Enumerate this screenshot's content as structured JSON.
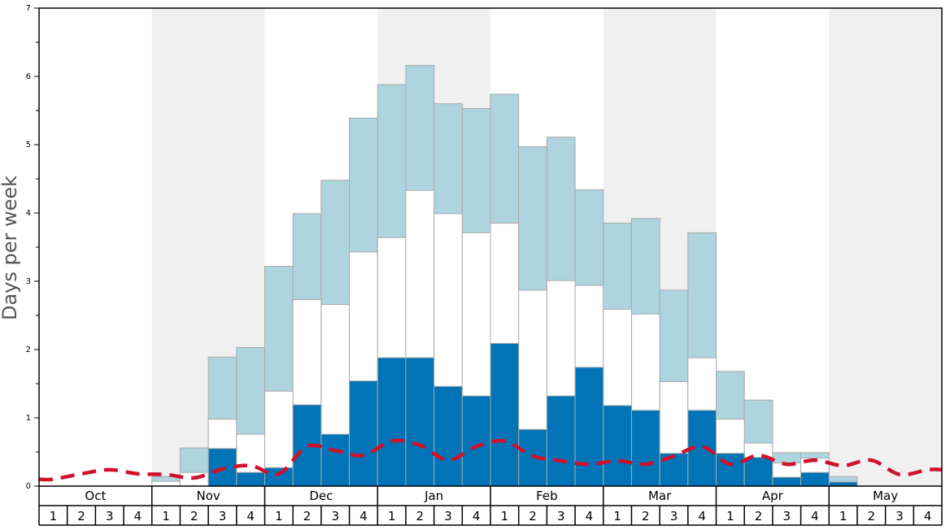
{
  "chart_data": {
    "type": "bar",
    "ylabel": "Days per week",
    "ylim": [
      0,
      7
    ],
    "y_ticks": [
      "0",
      "1",
      "2",
      "3",
      "4",
      "5",
      "6",
      "7"
    ],
    "grid": false,
    "months": [
      "Oct",
      "Nov",
      "Dec",
      "Jan",
      "Feb",
      "Mar",
      "Apr",
      "May"
    ],
    "week_labels": [
      "1",
      "2",
      "3",
      "4"
    ],
    "categories": [
      "Oct 1",
      "Oct 2",
      "Oct 3",
      "Oct 4",
      "Nov 1",
      "Nov 2",
      "Nov 3",
      "Nov 4",
      "Dec 1",
      "Dec 2",
      "Dec 3",
      "Dec 4",
      "Jan 1",
      "Jan 2",
      "Jan 3",
      "Jan 4",
      "Feb 1",
      "Feb 2",
      "Feb 3",
      "Feb 4",
      "Mar 1",
      "Mar 2",
      "Mar 3",
      "Mar 4",
      "Apr 1",
      "Apr 2",
      "Apr 3",
      "Apr 4",
      "May 1",
      "May 2",
      "May 3",
      "May 4"
    ],
    "series": [
      {
        "color": "#0074b7",
        "values": [
          0,
          0,
          0,
          0,
          0,
          0,
          0.55,
          0.2,
          0.27,
          1.19,
          0.76,
          1.54,
          1.88,
          1.88,
          1.46,
          1.32,
          2.09,
          0.83,
          1.32,
          1.74,
          1.18,
          1.11,
          0.48,
          1.11,
          0.48,
          0.42,
          0.13,
          0.2,
          0.06,
          0,
          0,
          0
        ]
      },
      {
        "color": "#ffffff",
        "values": [
          0,
          0,
          0,
          0,
          0.07,
          0.2,
          0.98,
          0.76,
          1.39,
          2.73,
          2.66,
          3.43,
          3.64,
          4.33,
          3.99,
          3.71,
          3.85,
          2.87,
          3.01,
          2.94,
          2.59,
          2.52,
          1.53,
          1.88,
          0.98,
          0.63,
          0.34,
          0.41,
          0.06,
          0,
          0,
          0
        ]
      },
      {
        "color": "#aed4e0",
        "values": [
          0,
          0,
          0,
          0,
          0.14,
          0.56,
          1.89,
          2.03,
          3.22,
          3.99,
          4.48,
          5.39,
          5.88,
          6.16,
          5.6,
          5.53,
          5.74,
          4.97,
          5.11,
          4.34,
          3.85,
          3.92,
          2.87,
          3.71,
          1.68,
          1.26,
          0.49,
          0.49,
          0.14,
          0,
          0,
          0
        ]
      },
      {
        "color": "#d0112b",
        "values": [
          0.1,
          0.18,
          0.24,
          0.18,
          0.17,
          0.12,
          0.25,
          0.3,
          0.18,
          0.58,
          0.52,
          0.45,
          0.66,
          0.6,
          0.38,
          0.58,
          0.66,
          0.44,
          0.37,
          0.32,
          0.37,
          0.32,
          0.44,
          0.58,
          0.32,
          0.45,
          0.32,
          0.38,
          0.3,
          0.38,
          0.17,
          0.24
        ]
      }
    ],
    "colors": {
      "month_band_shade": "#f0f0f0",
      "bar_edge": "#a9a9a9",
      "axis": "#000000"
    }
  }
}
